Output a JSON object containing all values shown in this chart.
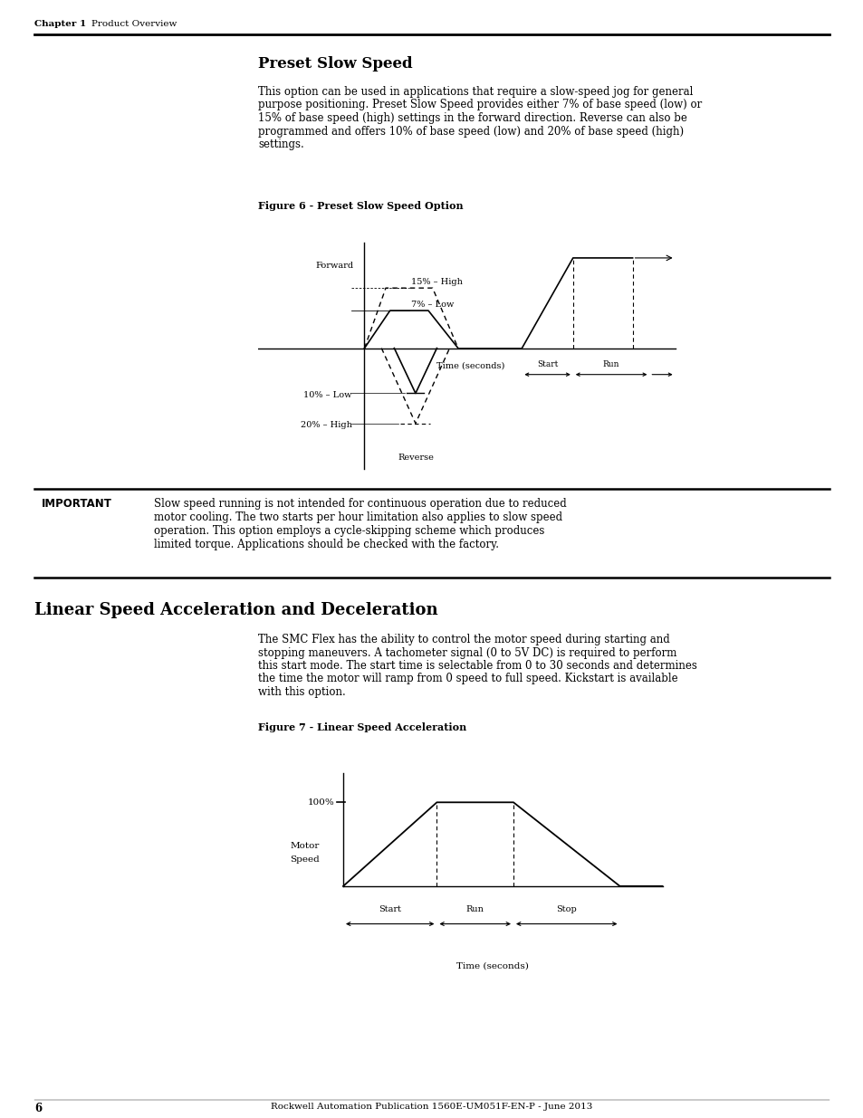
{
  "page_bg": "#ffffff",
  "header_chapter": "Chapter 1",
  "header_section": "    Product Overview",
  "title1": "Preset Slow Speed",
  "body1_lines": [
    "This option can be used in applications that require a slow-speed jog for general",
    "purpose positioning. Preset Slow Speed provides either 7% of base speed (low) or",
    "15% of base speed (high) settings in the forward direction. Reverse can also be",
    "programmed and offers 10% of base speed (low) and 20% of base speed (high)",
    "settings."
  ],
  "fig1_caption": "Figure 6 - Preset Slow Speed Option",
  "fig1_xlabel": "Time (seconds)",
  "fig1_forward_label": "Forward",
  "fig1_15high": "15% – High",
  "fig1_7low": "7% – Low",
  "fig1_10low": "10% – Low",
  "fig1_20high": "20% – High",
  "fig1_reverse": "Reverse",
  "fig1_start": "Start",
  "fig1_run": "Run",
  "important_label": "IMPORTANT",
  "important_text_lines": [
    "Slow speed running is not intended for continuous operation due to reduced",
    "motor cooling. The two starts per hour limitation also applies to slow speed",
    "operation. This option employs a cycle-skipping scheme which produces",
    "limited torque. Applications should be checked with the factory."
  ],
  "title2": "Linear Speed Acceleration and Deceleration",
  "body2_lines": [
    "The SMC Flex has the ability to control the motor speed during starting and",
    "stopping maneuvers. A tachometer signal (0 to 5V DC) is required to perform",
    "this start mode. The start time is selectable from 0 to 30 seconds and determines",
    "the time the motor will ramp from 0 speed to full speed. Kickstart is available",
    "with this option."
  ],
  "fig2_caption": "Figure 7 - Linear Speed Acceleration",
  "fig2_100pct": "100%",
  "fig2_motor_speed_line1": "Motor",
  "fig2_motor_speed_line2": "Speed",
  "fig2_xlabel": "Time (seconds)",
  "fig2_start": "Start",
  "fig2_run": "Run",
  "fig2_stop": "Stop",
  "footer_page": "6",
  "footer_pub": "Rockwell Automation Publication 1560E-UM051F-EN-P - June 2013"
}
